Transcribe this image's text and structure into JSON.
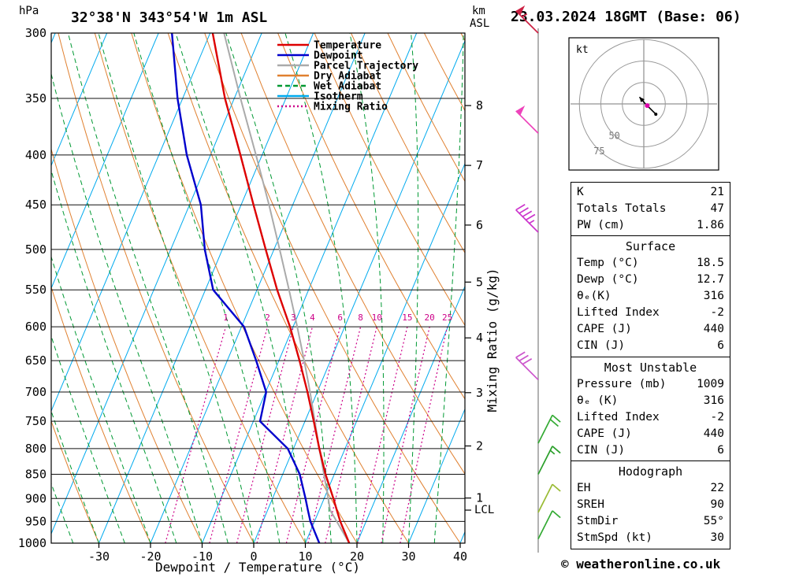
{
  "header": {
    "pressure_unit": "hPa",
    "station": "32°38'N 343°54'W 1m ASL",
    "altitude_unit_line1": "km",
    "altitude_unit_line2": "ASL",
    "datetime": "23.03.2024 18GMT (Base: 06)"
  },
  "legend": [
    {
      "label": "Temperature",
      "color": "#dd0000",
      "style": "solid"
    },
    {
      "label": "Dewpoint",
      "color": "#0000cc",
      "style": "solid"
    },
    {
      "label": "Parcel Trajectory",
      "color": "#aaaaaa",
      "style": "solid"
    },
    {
      "label": "Dry Adiabat",
      "color": "#e08030",
      "style": "solid"
    },
    {
      "label": "Wet Adiabat",
      "color": "#009933",
      "style": "dashed"
    },
    {
      "label": "Isotherm",
      "color": "#00aaee",
      "style": "solid"
    },
    {
      "label": "Mixing Ratio",
      "color": "#cc0088",
      "style": "dotted"
    }
  ],
  "axes": {
    "pressure_ticks": [
      300,
      350,
      400,
      450,
      500,
      550,
      600,
      650,
      700,
      750,
      800,
      850,
      900,
      950,
      1000
    ],
    "temperature_ticks": [
      -30,
      -20,
      -10,
      0,
      10,
      20,
      30,
      40
    ],
    "km_ticks": [
      {
        "km": 8,
        "p": 356
      },
      {
        "km": 7,
        "p": 410
      },
      {
        "km": 6,
        "p": 472
      },
      {
        "km": 5,
        "p": 540
      },
      {
        "km": 4,
        "p": 616
      },
      {
        "km": 3,
        "p": 701
      },
      {
        "km": 2,
        "p": 795
      },
      {
        "km": 1,
        "p": 899
      }
    ],
    "lcl": {
      "label": "LCL",
      "p": 925
    },
    "xlabel": "Dewpoint / Temperature (°C)",
    "y2label": "Mixing Ratio (g/kg)",
    "mixing_ratios": [
      1,
      2,
      3,
      4,
      6,
      8,
      10,
      15,
      20,
      25
    ]
  },
  "chart_data": {
    "type": "line",
    "title": "Skew-T log-P sounding 32°38'N 343°54'W 1m ASL 23.03.2024 18GMT",
    "pressure_range_hPa": [
      300,
      1000
    ],
    "surface_temp_axis_range_C": [
      -39,
      41
    ],
    "pressure_hPa": [
      1000,
      950,
      925,
      900,
      850,
      800,
      750,
      700,
      650,
      600,
      550,
      500,
      450,
      400,
      350,
      300
    ],
    "temperature_C": [
      18.5,
      15.0,
      13.4,
      11.8,
      8.3,
      5.0,
      1.7,
      -1.9,
      -6.0,
      -10.6,
      -16.1,
      -21.6,
      -27.6,
      -34.2,
      -41.8,
      -49.5
    ],
    "dewpoint_C": [
      12.7,
      9.2,
      7.8,
      6.4,
      3.3,
      -1.1,
      -8.7,
      -9.9,
      -14.4,
      -19.5,
      -28.5,
      -33.4,
      -37.8,
      -44.6,
      -51.0,
      -57.4
    ],
    "parcel_C": [
      18.5,
      14.3,
      12.1,
      10.8,
      8.0,
      5.0,
      1.9,
      -1.4,
      -5.1,
      -9.2,
      -13.8,
      -18.9,
      -24.6,
      -31.2,
      -38.8,
      -47.3
    ]
  },
  "wind_barbs": [
    {
      "pressure": 300,
      "speed_kt": 55,
      "color": "#cc2244",
      "side": "left"
    },
    {
      "pressure": 380,
      "speed_kt": 50,
      "color": "#ee44bb",
      "side": "left"
    },
    {
      "pressure": 480,
      "speed_kt": 45,
      "color": "#cc33cc",
      "side": "left"
    },
    {
      "pressure": 680,
      "speed_kt": 30,
      "color": "#cc55cc",
      "side": "left"
    },
    {
      "pressure": 790,
      "speed_kt": 20,
      "color": "#33aa33",
      "side": "right"
    },
    {
      "pressure": 850,
      "speed_kt": 15,
      "color": "#2ca02c",
      "side": "right"
    },
    {
      "pressure": 930,
      "speed_kt": 10,
      "color": "#99bb33",
      "side": "right"
    },
    {
      "pressure": 990,
      "speed_kt": 10,
      "color": "#33aa33",
      "side": "right"
    }
  ],
  "hodograph": {
    "unit_label": "kt",
    "rings_kt": [
      25,
      50,
      75
    ],
    "ring_labels": [
      {
        "value": "50",
        "kt": 50
      },
      {
        "value": "75",
        "kt": 75
      }
    ],
    "trace_uv_kt": [
      [
        14,
        -12
      ],
      [
        7,
        -5
      ],
      [
        1,
        1
      ],
      [
        -5,
        8
      ]
    ],
    "storm_motion_uv_kt": [
      4,
      -2
    ]
  },
  "panel": {
    "sections": [
      {
        "title": "",
        "rows": [
          [
            "K",
            "21"
          ],
          [
            "Totals Totals",
            "47"
          ],
          [
            "PW (cm)",
            "1.86"
          ]
        ]
      },
      {
        "title": "Surface",
        "rows": [
          [
            "Temp (°C)",
            "18.5"
          ],
          [
            "Dewp (°C)",
            "12.7"
          ],
          [
            "θₑ(K)",
            "316"
          ],
          [
            "Lifted Index",
            "-2"
          ],
          [
            "CAPE (J)",
            "440"
          ],
          [
            "CIN (J)",
            "6"
          ]
        ]
      },
      {
        "title": "Most Unstable",
        "rows": [
          [
            "Pressure (mb)",
            "1009"
          ],
          [
            "θₑ (K)",
            "316"
          ],
          [
            "Lifted Index",
            "-2"
          ],
          [
            "CAPE (J)",
            "440"
          ],
          [
            "CIN (J)",
            "6"
          ]
        ]
      },
      {
        "title": "Hodograph",
        "rows": [
          [
            "EH",
            "22"
          ],
          [
            "SREH",
            "90"
          ],
          [
            "StmDir",
            "55°"
          ],
          [
            "StmSpd (kt)",
            "30"
          ]
        ]
      }
    ]
  },
  "footer": "© weatheronline.co.uk"
}
